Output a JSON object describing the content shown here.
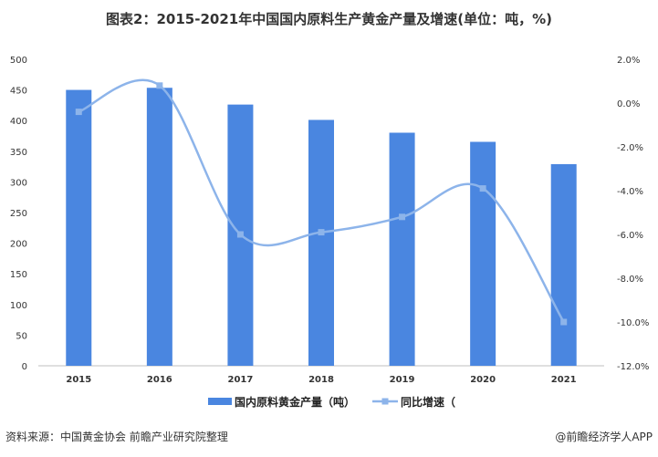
{
  "title": "图表2：2015-2021年中国国内原料生产黄金产量及增速(单位：吨，%)",
  "source": "资料来源：中国黄金协会 前瞻产业研究院整理",
  "credit": "@前瞻经济学人APP",
  "colors": {
    "bar": "#4a86e0",
    "line": "#8db4ea"
  },
  "chart_data": {
    "type": "bar+line",
    "title": "图表2：2015-2021年中国国内原料生产黄金产量及增速(单位：吨，%)",
    "categories": [
      "2015",
      "2016",
      "2017",
      "2018",
      "2019",
      "2020",
      "2021"
    ],
    "series": [
      {
        "name": "国内原料黄金产量（吨）",
        "type": "bar",
        "axis": "left",
        "values": [
          450.05,
          453.49,
          426.14,
          401.12,
          380.23,
          365.34,
          328.98
        ]
      },
      {
        "name": "同比增速（",
        "type": "line",
        "axis": "right",
        "smooth": true,
        "values": [
          -0.4,
          0.8,
          -6.0,
          -5.9,
          -5.2,
          -3.9,
          -10.0
        ]
      }
    ],
    "left_axis": {
      "ylim": [
        0,
        500
      ],
      "ticks": [
        "0",
        "50",
        "100",
        "150",
        "200",
        "250",
        "300",
        "350",
        "400",
        "450",
        "500"
      ]
    },
    "right_axis": {
      "ylim": [
        -12,
        2
      ],
      "ticks": [
        "-12.0%",
        "-10.0%",
        "-8.0%",
        "-6.0%",
        "-4.0%",
        "-2.0%",
        "0.0%",
        "2.0%"
      ]
    },
    "grid": false,
    "legend": "bottom"
  }
}
